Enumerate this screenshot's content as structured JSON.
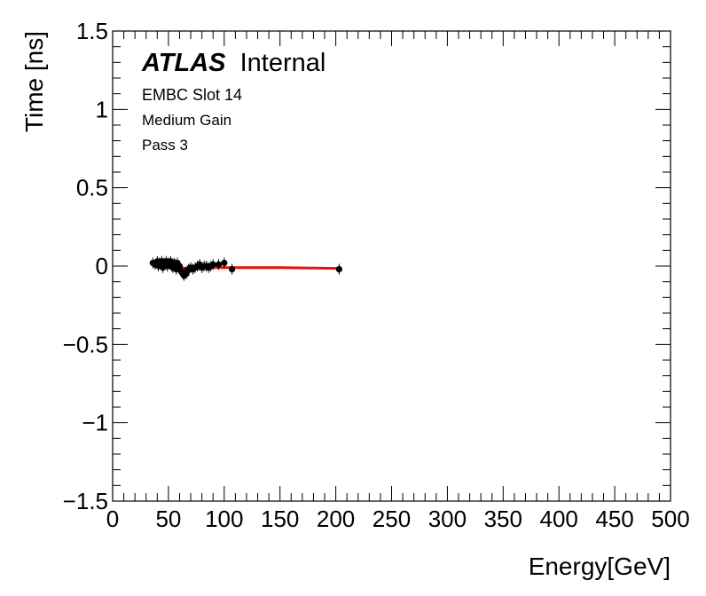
{
  "chart_data": {
    "type": "scatter",
    "title": "",
    "xlabel": "Energy[GeV]",
    "ylabel": "Time [ns]",
    "xlim": [
      0,
      500
    ],
    "ylim": [
      -1.5,
      1.5
    ],
    "xticks": [
      0,
      50,
      100,
      150,
      200,
      250,
      300,
      350,
      400,
      450,
      500
    ],
    "xtick_labels": [
      "0",
      "50",
      "100",
      "150",
      "200",
      "250",
      "300",
      "350",
      "400",
      "450",
      "500"
    ],
    "yticks": [
      1.5,
      1,
      0.5,
      0,
      -0.5,
      -1,
      -1.5
    ],
    "ytick_labels": [
      "1.5",
      "1",
      "0.5",
      "0",
      "−0.5",
      "−1",
      "−1.5"
    ],
    "grid": false,
    "annotations": {
      "atlas": "ATLAS",
      "atlas_suffix": "Internal",
      "line1": "EMBC Slot 14",
      "line2": "Medium Gain",
      "line3": "Pass 3"
    },
    "colors": {
      "points": "#000000",
      "fit": "#e8120c",
      "frame": "#000000"
    },
    "series": [
      {
        "kind": "points",
        "points": [
          [
            36,
            0.02
          ],
          [
            38,
            0.01
          ],
          [
            40,
            0.03
          ],
          [
            41,
            0.0
          ],
          [
            42,
            0.02
          ],
          [
            43,
            0.01
          ],
          [
            44,
            0.03
          ],
          [
            45,
            -0.01
          ],
          [
            46,
            0.02
          ],
          [
            47,
            0.01
          ],
          [
            48,
            0.03
          ],
          [
            49,
            0.0
          ],
          [
            50,
            0.02
          ],
          [
            51,
            0.01
          ],
          [
            52,
            0.03
          ],
          [
            53,
            0.0
          ],
          [
            54,
            -0.01
          ],
          [
            55,
            0.02
          ],
          [
            56,
            0.01
          ],
          [
            57,
            -0.02
          ],
          [
            58,
            0.02
          ],
          [
            59,
            -0.01
          ],
          [
            60,
            0.0
          ],
          [
            61,
            -0.03
          ],
          [
            62,
            -0.04
          ],
          [
            63,
            -0.05
          ],
          [
            64,
            -0.06
          ],
          [
            65,
            -0.04
          ],
          [
            66,
            -0.05
          ],
          [
            67,
            -0.03
          ],
          [
            68,
            -0.02
          ],
          [
            70,
            -0.01
          ],
          [
            72,
            -0.02
          ],
          [
            74,
            -0.01
          ],
          [
            76,
            0.0
          ],
          [
            78,
            0.01
          ],
          [
            80,
            -0.01
          ],
          [
            82,
            0.0
          ],
          [
            84,
            0.0
          ],
          [
            86,
            -0.01
          ],
          [
            88,
            0.0
          ],
          [
            90,
            0.01
          ],
          [
            95,
            0.01
          ],
          [
            100,
            0.02
          ],
          [
            107,
            -0.02
          ],
          [
            203,
            -0.02
          ]
        ]
      },
      {
        "kind": "fit",
        "points": [
          [
            36,
            0.02
          ],
          [
            45,
            0.01
          ],
          [
            55,
            0.0
          ],
          [
            62,
            -0.01
          ],
          [
            68,
            -0.02
          ],
          [
            75,
            -0.02
          ],
          [
            90,
            -0.01
          ],
          [
            110,
            -0.01
          ],
          [
            150,
            -0.01
          ],
          [
            203,
            -0.015
          ]
        ]
      }
    ]
  }
}
